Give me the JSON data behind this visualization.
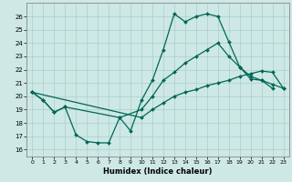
{
  "xlabel": "Humidex (Indice chaleur)",
  "background_color": "#cde8e5",
  "grid_color": "#aacfcc",
  "line_color": "#006655",
  "xlim": [
    -0.5,
    23.5
  ],
  "ylim": [
    15.5,
    27.0
  ],
  "yticks": [
    16,
    17,
    18,
    19,
    20,
    21,
    22,
    23,
    24,
    25,
    26
  ],
  "xticks": [
    0,
    1,
    2,
    3,
    4,
    5,
    6,
    7,
    8,
    9,
    10,
    11,
    12,
    13,
    14,
    15,
    16,
    17,
    18,
    19,
    20,
    21,
    22,
    23
  ],
  "line1": {
    "x": [
      0,
      1,
      2,
      3,
      4,
      5,
      6,
      7,
      8,
      9,
      10,
      11,
      12,
      13,
      14,
      15,
      16,
      17,
      18,
      19,
      20,
      21,
      22
    ],
    "y": [
      20.3,
      19.7,
      18.8,
      19.2,
      17.1,
      16.6,
      16.5,
      16.5,
      18.4,
      17.4,
      19.7,
      21.2,
      23.5,
      26.2,
      25.6,
      26.0,
      26.2,
      26.0,
      24.1,
      22.2,
      21.3,
      21.2,
      20.6
    ]
  },
  "line2": {
    "x": [
      0,
      1,
      2,
      3,
      8,
      10,
      11,
      12,
      13,
      14,
      15,
      16,
      17,
      18,
      19,
      20,
      21,
      22,
      23
    ],
    "y": [
      20.3,
      19.7,
      18.8,
      19.2,
      18.4,
      19.0,
      20.0,
      21.2,
      21.8,
      22.5,
      23.0,
      23.5,
      24.0,
      23.0,
      22.2,
      21.5,
      21.2,
      20.9,
      20.6
    ]
  },
  "line3": {
    "x": [
      0,
      10,
      11,
      12,
      13,
      14,
      15,
      16,
      17,
      18,
      19,
      20,
      21,
      22,
      23
    ],
    "y": [
      20.3,
      18.4,
      19.0,
      19.5,
      20.0,
      20.3,
      20.5,
      20.8,
      21.0,
      21.2,
      21.5,
      21.7,
      21.9,
      21.8,
      20.6
    ]
  }
}
